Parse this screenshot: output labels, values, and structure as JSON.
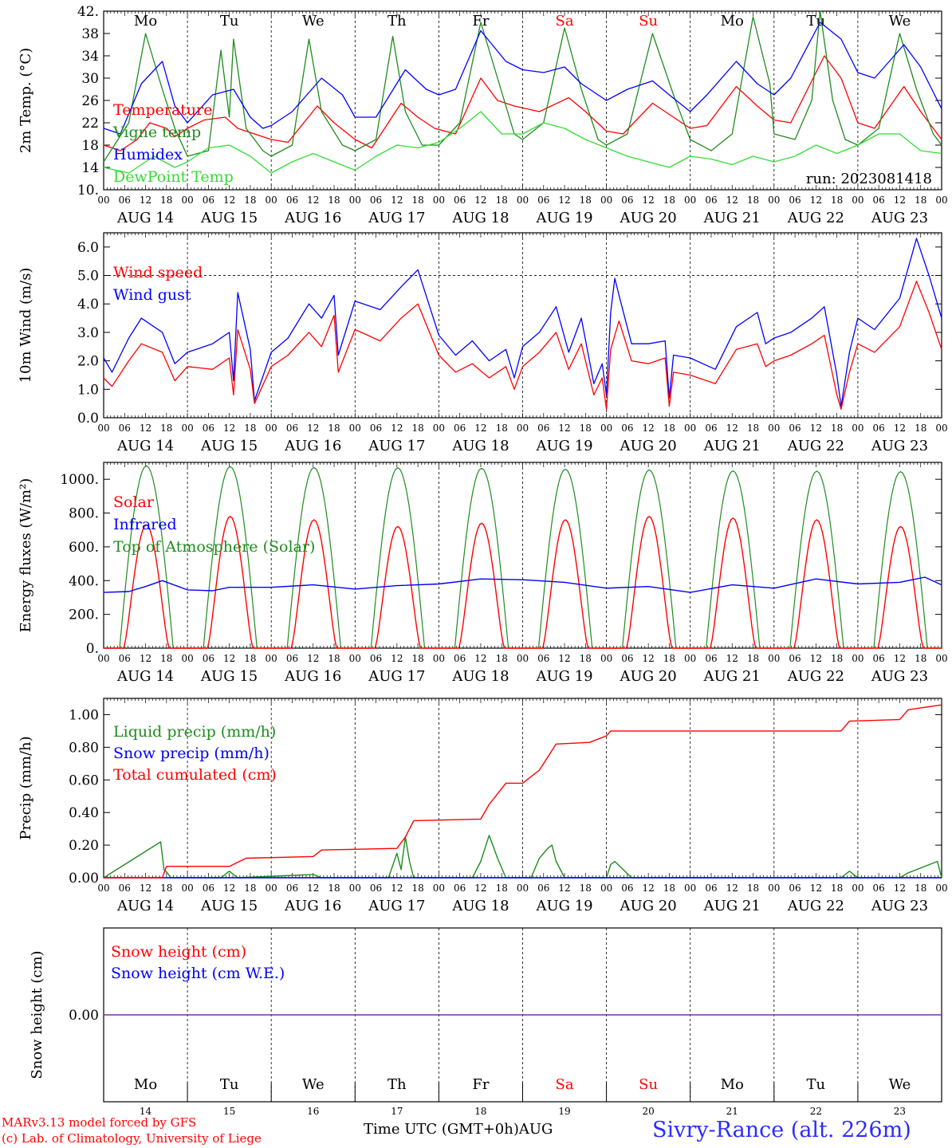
{
  "colors": {
    "temperature": "#ff0000",
    "vigne": "#1e8c1e",
    "humidex": "#0000ff",
    "dewpoint": "#33dd33",
    "wind_speed": "#ff0000",
    "wind_gust": "#0000ff",
    "solar": "#ff0000",
    "infrared": "#0000ff",
    "toa": "#1e8c1e",
    "liquid_precip": "#1e8c1e",
    "snow_precip": "#0000ff",
    "total_cum": "#ff0000",
    "snow_h": "#ff0000",
    "snow_we": "#0000ff",
    "snow_line": "#7b2fa0",
    "weekend": "#ff0000",
    "station": "#2c2cff"
  },
  "footer": {
    "credit_line1": "MARv3.13 model forced by GFS",
    "credit_line2": "(c) Lab. of Climatology, University of Liege",
    "x_title": "Time UTC (GMT+0h)AUG",
    "station": "Sivry-Rance (alt. 226m)"
  },
  "chart_data": [
    {
      "type": "line",
      "ylabel": "2m Temp. (°C)",
      "ylim": [
        10,
        42
      ],
      "yticks": [
        "10.",
        "14",
        "18",
        "22",
        "26",
        "30",
        "34",
        "38",
        "42."
      ],
      "day_labels": [
        "Mo",
        "Tu",
        "We",
        "Th",
        "Fr",
        "Sa",
        "Su",
        "Mo",
        "Tu",
        "We"
      ],
      "date_labels": [
        "AUG 14",
        "AUG 15",
        "AUG 16",
        "AUG 17",
        "AUG 18",
        "AUG 19",
        "AUG 20",
        "AUG 21",
        "AUG 22",
        "AUG 23"
      ],
      "hour_labels": [
        "00",
        "06",
        "12",
        "18"
      ],
      "run_label": "run: 2023081418",
      "x_unit": "days since Aug 14 00 UTC",
      "series": [
        {
          "name": "Temperature",
          "color": "#ff0000",
          "x": [
            0,
            0.2,
            0.4,
            0.55,
            0.75,
            0.85,
            1,
            1.2,
            1.45,
            1.6,
            1.8,
            2,
            2.2,
            2.55,
            2.75,
            3,
            3.2,
            3.55,
            3.75,
            3.95,
            4.2,
            4.5,
            4.7,
            4.9,
            5.2,
            5.55,
            5.75,
            6,
            6.2,
            6.55,
            6.8,
            7,
            7.2,
            7.55,
            7.8,
            8,
            8.2,
            8.6,
            8.8,
            9,
            9.2,
            9.55,
            9.75,
            10
          ],
          "y": [
            18,
            17,
            19,
            22,
            21,
            19.5,
            21,
            22.5,
            23,
            21,
            20,
            19,
            18.5,
            25,
            22,
            19,
            17.5,
            25.5,
            23,
            21,
            20,
            30,
            26,
            25,
            24,
            26.5,
            24,
            20.5,
            20,
            25.5,
            23,
            21,
            21.5,
            28.5,
            25,
            22.5,
            22,
            34,
            30,
            22,
            21,
            28.5,
            24,
            19
          ]
        },
        {
          "name": "Vigne temp",
          "color": "#1e8c1e",
          "x": [
            0,
            0.3,
            0.5,
            0.7,
            0.85,
            1,
            1.25,
            1.4,
            1.5,
            1.55,
            1.7,
            1.9,
            2,
            2.25,
            2.45,
            2.6,
            2.85,
            3,
            3.25,
            3.45,
            3.6,
            3.8,
            4,
            4.25,
            4.5,
            4.7,
            4.9,
            5,
            5.25,
            5.5,
            5.7,
            5.9,
            6,
            6.25,
            6.55,
            6.8,
            7,
            7.25,
            7.5,
            7.75,
            7.95,
            8,
            8.25,
            8.45,
            8.55,
            8.7,
            8.85,
            9,
            9.25,
            9.5,
            9.7,
            9.9,
            10
          ],
          "y": [
            15,
            22,
            38,
            28,
            21,
            16,
            17,
            35,
            23,
            37,
            21,
            17,
            16,
            18,
            37,
            24,
            18,
            17,
            19,
            37.5,
            24,
            18,
            18,
            22,
            40,
            30,
            20,
            19,
            22,
            39,
            28,
            19,
            18,
            20,
            38,
            27,
            19,
            17,
            20,
            41,
            29,
            20,
            19,
            26,
            42,
            26,
            19,
            18,
            21,
            38,
            28,
            20,
            18
          ]
        },
        {
          "name": "Humidex",
          "color": "#0000ff",
          "x": [
            0,
            0.2,
            0.45,
            0.7,
            0.85,
            1,
            1.3,
            1.55,
            1.75,
            1.9,
            2,
            2.25,
            2.6,
            2.85,
            3,
            3.25,
            3.6,
            3.85,
            4,
            4.2,
            4.5,
            4.8,
            5,
            5.25,
            5.5,
            5.7,
            5.9,
            6,
            6.25,
            6.55,
            6.75,
            7,
            7.2,
            7.55,
            7.8,
            8,
            8.2,
            8.55,
            8.8,
            9,
            9.2,
            9.55,
            9.75,
            10
          ],
          "y": [
            21,
            20,
            29,
            33,
            25,
            22,
            27,
            28,
            23,
            21,
            21.5,
            24,
            30,
            27,
            23,
            23,
            31.5,
            28,
            27,
            28,
            38.5,
            33,
            31.5,
            31,
            32,
            29,
            27,
            26,
            28,
            29.5,
            27,
            24,
            27,
            33,
            29,
            27,
            30,
            40,
            37,
            31,
            30,
            36,
            32,
            24.5
          ]
        },
        {
          "name": "DewPoint Temp",
          "color": "#33dd33",
          "x": [
            0,
            0.3,
            0.6,
            0.85,
            1,
            1.25,
            1.5,
            1.75,
            2,
            2.25,
            2.5,
            2.75,
            3,
            3.25,
            3.5,
            3.75,
            4,
            4.25,
            4.5,
            4.75,
            5,
            5.25,
            5.5,
            5.75,
            6,
            6.25,
            6.5,
            6.75,
            7,
            7.25,
            7.5,
            7.75,
            8,
            8.25,
            8.5,
            8.75,
            9,
            9.25,
            9.5,
            9.75,
            10
          ],
          "y": [
            14,
            13,
            16,
            14,
            15,
            17.5,
            18,
            16,
            13,
            15,
            16.5,
            15,
            13.5,
            16,
            18,
            17.5,
            18.5,
            21,
            24,
            20,
            20,
            22,
            21,
            19,
            17.5,
            16,
            15,
            14,
            16,
            15.5,
            14.5,
            16,
            15,
            16,
            18,
            16.5,
            18,
            20,
            20,
            17,
            16.5
          ]
        }
      ]
    },
    {
      "type": "line",
      "ylabel": "10m Wind (m/s)",
      "ylim": [
        0,
        6.5
      ],
      "yticks": [
        "0.0",
        "1.0",
        "2.0",
        "3.0",
        "4.0",
        "5.0",
        "6.0"
      ],
      "reference_line": 5,
      "date_labels": [
        "AUG 14",
        "AUG 15",
        "AUG 16",
        "AUG 17",
        "AUG 18",
        "AUG 19",
        "AUG 20",
        "AUG 21",
        "AUG 22",
        "AUG 23"
      ],
      "hour_labels": [
        "00",
        "06",
        "12",
        "18"
      ],
      "series": [
        {
          "name": "Wind speed",
          "color": "#ff0000",
          "x": [
            0,
            0.1,
            0.3,
            0.45,
            0.7,
            0.85,
            1,
            1.3,
            1.5,
            1.55,
            1.6,
            1.75,
            1.8,
            2,
            2.2,
            2.45,
            2.6,
            2.75,
            2.8,
            3,
            3.3,
            3.55,
            3.75,
            4,
            4.2,
            4.4,
            4.6,
            4.8,
            4.9,
            5,
            5.2,
            5.4,
            5.55,
            5.7,
            5.85,
            5.95,
            6,
            6.05,
            6.15,
            6.3,
            6.5,
            6.7,
            6.75,
            6.8,
            7,
            7.3,
            7.55,
            7.8,
            7.9,
            8,
            8.2,
            8.45,
            8.6,
            8.75,
            8.8,
            8.9,
            9,
            9.2,
            9.5,
            9.7,
            9.85,
            10
          ],
          "y": [
            1.4,
            1.1,
            2.0,
            2.6,
            2.3,
            1.3,
            1.8,
            1.7,
            2.1,
            0.8,
            3.1,
            1.7,
            0.5,
            1.8,
            2.2,
            3.0,
            2.5,
            3.6,
            1.6,
            3.1,
            2.7,
            3.5,
            4.0,
            2.2,
            1.6,
            1.9,
            1.4,
            1.8,
            1.0,
            1.8,
            2.3,
            3.0,
            1.7,
            2.6,
            0.8,
            1.4,
            0.3,
            2.4,
            3.4,
            2.0,
            1.9,
            2.1,
            0.4,
            1.6,
            1.5,
            1.2,
            2.4,
            2.6,
            1.8,
            2.0,
            2.2,
            2.6,
            2.9,
            0.8,
            0.3,
            1.6,
            2.6,
            2.3,
            3.2,
            4.8,
            3.7,
            2.4
          ]
        },
        {
          "name": "Wind gust",
          "color": "#0000ff",
          "x": [
            0,
            0.1,
            0.3,
            0.45,
            0.7,
            0.85,
            1,
            1.3,
            1.5,
            1.55,
            1.6,
            1.75,
            1.8,
            2,
            2.2,
            2.45,
            2.6,
            2.75,
            2.8,
            3,
            3.3,
            3.55,
            3.75,
            4,
            4.2,
            4.4,
            4.6,
            4.8,
            4.9,
            5,
            5.2,
            5.4,
            5.55,
            5.7,
            5.85,
            5.95,
            6,
            6.05,
            6.1,
            6.15,
            6.3,
            6.5,
            6.7,
            6.75,
            6.8,
            7,
            7.3,
            7.55,
            7.8,
            7.9,
            8,
            8.2,
            8.45,
            8.6,
            8.75,
            8.8,
            8.9,
            9,
            9.2,
            9.5,
            9.7,
            9.85,
            10
          ],
          "y": [
            2.1,
            1.6,
            2.8,
            3.5,
            3.0,
            1.9,
            2.3,
            2.6,
            3.0,
            1.3,
            4.4,
            2.4,
            0.6,
            2.3,
            2.8,
            4.0,
            3.5,
            4.3,
            2.2,
            4.1,
            3.8,
            4.6,
            5.2,
            2.9,
            2.2,
            2.7,
            2.0,
            2.4,
            1.4,
            2.5,
            3.0,
            3.9,
            2.3,
            3.5,
            1.2,
            1.9,
            0.8,
            3.7,
            4.9,
            4.3,
            2.6,
            2.6,
            2.7,
            0.7,
            2.2,
            2.1,
            1.7,
            3.2,
            3.7,
            2.6,
            2.8,
            3.0,
            3.5,
            3.9,
            1.5,
            0.4,
            2.3,
            3.5,
            3.1,
            4.2,
            6.3,
            5.0,
            3.5
          ]
        }
      ]
    },
    {
      "type": "line",
      "ylabel": "Energy fluxes (W/m²)",
      "ylim": [
        0,
        1100
      ],
      "yticks": [
        "0.",
        "200.",
        "400.",
        "600.",
        "800.",
        "1000."
      ],
      "date_labels": [
        "AUG 14",
        "AUG 15",
        "AUG 16",
        "AUG 17",
        "AUG 18",
        "AUG 19",
        "AUG 20",
        "AUG 21",
        "AUG 22",
        "AUG 23"
      ],
      "hour_labels": [
        "00",
        "06",
        "12",
        "18"
      ],
      "series": [
        {
          "name": "Solar",
          "color": "#ff0000",
          "daily_peaks": [
            730,
            780,
            760,
            720,
            740,
            760,
            780,
            770,
            760,
            720
          ]
        },
        {
          "name": "Infrared",
          "color": "#0000ff",
          "x": [
            0,
            0.3,
            0.5,
            0.7,
            1,
            1.3,
            1.5,
            2,
            2.5,
            3,
            3.5,
            4,
            4.5,
            5,
            5.5,
            6,
            6.5,
            7,
            7.5,
            8,
            8.5,
            9,
            9.5,
            9.8,
            10
          ],
          "y": [
            330,
            335,
            365,
            400,
            345,
            340,
            360,
            360,
            375,
            350,
            370,
            380,
            410,
            405,
            390,
            355,
            365,
            330,
            375,
            355,
            410,
            380,
            390,
            420,
            375
          ]
        },
        {
          "name": "Top of Atmosphere (Solar)",
          "color": "#1e8c1e",
          "daily_peaks": [
            1080,
            1075,
            1070,
            1068,
            1065,
            1060,
            1055,
            1050,
            1048,
            1045
          ]
        }
      ]
    },
    {
      "type": "line",
      "ylabel": "Precip (mm/h)",
      "ylim": [
        0,
        1.1
      ],
      "yticks": [
        "0.00",
        "0.20",
        "0.40",
        "0.60",
        "0.80",
        "1.00"
      ],
      "date_labels": [
        "AUG 14",
        "AUG 15",
        "AUG 16",
        "AUG 17",
        "AUG 18",
        "AUG 19",
        "AUG 20",
        "AUG 21",
        "AUG 22",
        "AUG 23"
      ],
      "hour_labels": [
        "00",
        "06",
        "12",
        "18"
      ],
      "series": [
        {
          "name": "Liquid precip (mm/h)",
          "color": "#1e8c1e",
          "x": [
            0,
            0.68,
            0.72,
            0.76,
            0.8,
            1.4,
            1.5,
            1.6,
            2.5,
            2.6,
            3.4,
            3.5,
            3.55,
            3.6,
            3.65,
            3.7,
            4.4,
            4.5,
            4.55,
            4.6,
            4.7,
            4.8,
            5.1,
            5.2,
            5.3,
            5.35,
            5.4,
            5.5,
            6.0,
            6.05,
            6.1,
            6.2,
            6.3,
            8.8,
            8.9,
            9.0,
            9.5,
            9.6,
            9.95,
            10
          ],
          "y": [
            0,
            0.22,
            0.05,
            0.03,
            0,
            0,
            0.04,
            0,
            0.02,
            0,
            0,
            0.15,
            0.05,
            0.25,
            0.1,
            0,
            0,
            0.1,
            0.18,
            0.26,
            0.12,
            0,
            0,
            0.12,
            0.18,
            0.2,
            0.1,
            0,
            0,
            0.08,
            0.1,
            0.05,
            0,
            0,
            0.04,
            0,
            0,
            0.03,
            0.1,
            0
          ]
        },
        {
          "name": "Snow precip (mm/h)",
          "color": "#0000ff",
          "x": [
            0,
            10
          ],
          "y": [
            0,
            0
          ]
        },
        {
          "name": "Total cumulated (cm)",
          "color": "#ff0000",
          "x": [
            0,
            0.7,
            0.75,
            1.5,
            1.7,
            2.5,
            2.6,
            3.5,
            3.6,
            3.7,
            4.5,
            4.6,
            4.8,
            5.0,
            5.2,
            5.4,
            5.8,
            6.0,
            6.05,
            8.8,
            8.9,
            9.5,
            9.6,
            10
          ],
          "y": [
            0,
            0,
            0.07,
            0.07,
            0.12,
            0.13,
            0.17,
            0.18,
            0.25,
            0.35,
            0.36,
            0.45,
            0.58,
            0.58,
            0.66,
            0.82,
            0.83,
            0.87,
            0.9,
            0.9,
            0.96,
            0.97,
            1.03,
            1.06
          ]
        }
      ]
    },
    {
      "type": "line",
      "ylabel": "Snow height (cm)",
      "yticks": [
        "0.00"
      ],
      "day_labels": [
        "Mo",
        "Tu",
        "We",
        "Th",
        "Fr",
        "Sa",
        "Su",
        "Mo",
        "Tu",
        "We"
      ],
      "date_numbers": [
        "14",
        "15",
        "16",
        "17",
        "18",
        "19",
        "20",
        "21",
        "22",
        "23"
      ],
      "series": [
        {
          "name": "Snow height (cm)",
          "color": "#ff0000",
          "x": [
            0,
            10
          ],
          "y": [
            0,
            0
          ]
        },
        {
          "name": "Snow height (cm W.E.)",
          "color": "#0000ff",
          "x": [
            0,
            10
          ],
          "y": [
            0,
            0
          ]
        }
      ]
    }
  ]
}
